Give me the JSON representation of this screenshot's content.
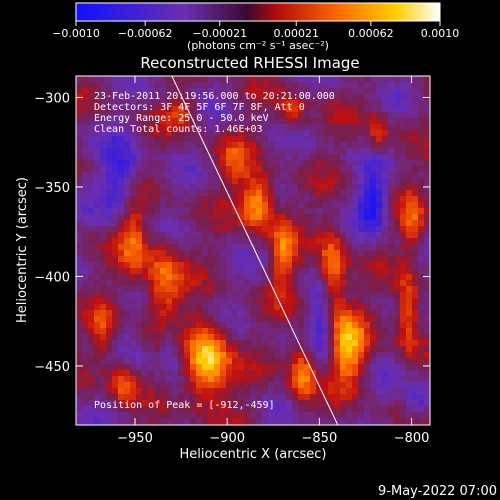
{
  "chart_data": {
    "type": "heatmap",
    "title": "Reconstructed RHESSI Image",
    "xlabel": "Heliocentric X (arcsec)",
    "ylabel": "Heliocentric Y (arcsec)",
    "xlim": [
      -982,
      -790
    ],
    "ylim": [
      -483,
      -288
    ],
    "x_ticks": [
      -950,
      -900,
      -850,
      -800
    ],
    "x_tick_labels": [
      "−950",
      "−900",
      "−850",
      "−800"
    ],
    "y_ticks": [
      -300,
      -350,
      -400,
      -450
    ],
    "y_tick_labels": [
      "−300",
      "−350",
      "−400",
      "−450"
    ],
    "colorbar": {
      "min": -0.001,
      "max": 0.001,
      "ticks": [
        -0.001,
        -0.00062,
        -0.00021,
        0.00021,
        0.00062,
        0.001
      ],
      "tick_labels": [
        "−0.0010",
        "−0.00062",
        "−0.00021",
        "0.00021",
        "0.00062",
        "0.0010"
      ],
      "units_label": "(photons cm⁻² s⁻¹ asec⁻²)",
      "colors": [
        "#1010ff",
        "#6a2fb0",
        "#7a1f4a",
        "#c01010",
        "#ff6a00",
        "#ffd000",
        "#ffffff"
      ]
    },
    "annotations": [
      "23-Feb-2011 20:19:56.000 to 20:21:00.000",
      "Detectors: 3F 4F 5F 6F 7F 8F, Att 0",
      "Energy Range: 25.0 - 50.0 keV",
      "Clean    Total counts: 1.46E+03"
    ],
    "peak_label": "Position of Peak = [-912,-459]",
    "peak": [
      -912,
      -459
    ],
    "limb_line": [
      [
        -930,
        -288
      ],
      [
        -840,
        -483
      ]
    ]
  },
  "footer_timestamp": "9-May-2022 07:00"
}
